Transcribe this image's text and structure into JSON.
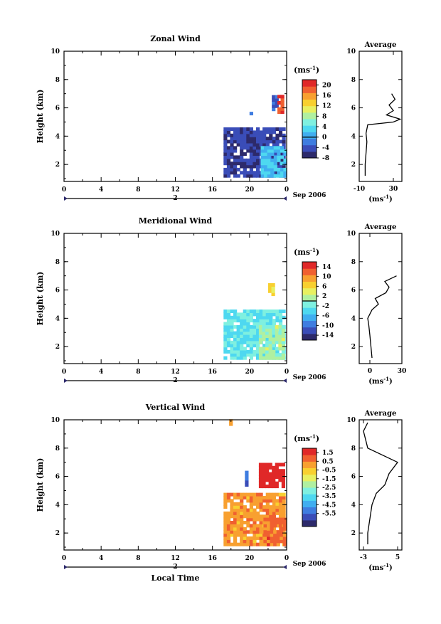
{
  "xlabel_bottom": "Local Time",
  "date_label": "Sep 2006",
  "day_label": "2",
  "ylabel": "Height (km)",
  "units": "(ms",
  "units_sup": "-1",
  "x_ticks": [
    "0",
    "4",
    "8",
    "12",
    "16",
    "20",
    "0"
  ],
  "y_ticks": [
    "2",
    "4",
    "6",
    "8",
    "10"
  ],
  "avg_title": "Average",
  "colormap": [
    "#2d2a6b",
    "#3a4db8",
    "#3f7de0",
    "#40aef0",
    "#4ed8f0",
    "#7ff0e0",
    "#b0f0a0",
    "#e8f060",
    "#f8d030",
    "#f8a030",
    "#f06030",
    "#e02828"
  ],
  "chart_data": [
    {
      "type": "heatmap",
      "title": "Zonal Wind",
      "xlim": [
        0,
        24
      ],
      "ylim": [
        0.8,
        10
      ],
      "colorbar": {
        "min": -8,
        "max": 22,
        "ticks": [
          "20",
          "16",
          "12",
          "8",
          "4",
          "0",
          "-4",
          "-8"
        ],
        "tick_values": [
          20,
          16,
          12,
          8,
          4,
          0,
          -4,
          -8
        ],
        "zero_line": 0
      },
      "regions": [
        {
          "x0": 17.2,
          "x1": 23.8,
          "y0": 1.1,
          "y1": 4.6,
          "value": -5
        },
        {
          "x0": 21.2,
          "x1": 23.8,
          "y0": 1.1,
          "y1": 3.2,
          "value": 2
        },
        {
          "x0": 22.4,
          "x1": 23.0,
          "y0": 5.8,
          "y1": 6.8,
          "value": -3
        },
        {
          "x0": 23.0,
          "x1": 23.6,
          "y0": 5.6,
          "y1": 6.8,
          "value": 20
        },
        {
          "x0": 20.0,
          "x1": 20.2,
          "y0": 5.5,
          "y1": 5.9,
          "value": -2
        }
      ],
      "average": {
        "xlim": [
          -10,
          40
        ],
        "x_ticks": [
          "-10",
          "30"
        ],
        "x_tick_values": [
          -10,
          30
        ],
        "y_ticks": [
          "2",
          "4",
          "6",
          "8",
          "10"
        ],
        "y": [
          1.2,
          2.0,
          2.8,
          3.6,
          4.2,
          4.8,
          5.0,
          5.2,
          5.5,
          5.8,
          6.2,
          6.6,
          7.0
        ],
        "x": [
          -3,
          -3,
          -2,
          -1,
          -2,
          0,
          30,
          38,
          22,
          30,
          25,
          32,
          28
        ]
      }
    },
    {
      "type": "heatmap",
      "title": "Meridional Wind",
      "xlim": [
        0,
        24
      ],
      "ylim": [
        0.8,
        10
      ],
      "colorbar": {
        "min": -16,
        "max": 16,
        "ticks": [
          "14",
          "10",
          "6",
          "2",
          "-2",
          "-6",
          "-10",
          "-14"
        ],
        "tick_values": [
          14,
          10,
          6,
          2,
          -2,
          -6,
          -10,
          -14
        ],
        "zero_line": 0
      },
      "regions": [
        {
          "x0": 17.2,
          "x1": 23.8,
          "y0": 1.1,
          "y1": 4.6,
          "value": -3
        },
        {
          "x0": 21.0,
          "x1": 23.8,
          "y0": 1.1,
          "y1": 3.5,
          "value": 1
        },
        {
          "x0": 22.0,
          "x1": 22.5,
          "y0": 5.6,
          "y1": 6.3,
          "value": 6
        }
      ],
      "average": {
        "xlim": [
          -10,
          30
        ],
        "x_ticks": [
          "0",
          "30"
        ],
        "x_tick_values": [
          0,
          30
        ],
        "y_ticks": [
          "2",
          "4",
          "6",
          "8",
          "10"
        ],
        "y": [
          1.2,
          2.0,
          2.8,
          3.5,
          4.0,
          4.6,
          5.0,
          5.4,
          5.8,
          6.2,
          6.6,
          7.0
        ],
        "x": [
          2,
          1,
          0,
          -1,
          -2,
          2,
          8,
          5,
          15,
          18,
          14,
          25
        ]
      }
    },
    {
      "type": "heatmap",
      "title": "Vertical Wind",
      "xlim": [
        0,
        24
      ],
      "ylim": [
        0.8,
        10
      ],
      "colorbar": {
        "min": -7,
        "max": 2,
        "ticks": [
          "1.5",
          "0.5",
          "-0.5",
          "-1.5",
          "-2.5",
          "-3.5",
          "-4.5",
          "-5.5"
        ],
        "tick_values": [
          1.5,
          0.5,
          -0.5,
          -1.5,
          -2.5,
          -3.5,
          -4.5,
          -5.5
        ],
        "zero_line": null
      },
      "regions": [
        {
          "x0": 17.2,
          "x1": 23.8,
          "y0": 1.1,
          "y1": 4.8,
          "value": 0.2
        },
        {
          "x0": 21.5,
          "x1": 23.8,
          "y0": 1.1,
          "y1": 3.0,
          "value": 0.8
        },
        {
          "x0": 21.0,
          "x1": 23.6,
          "y0": 5.2,
          "y1": 6.9,
          "value": 1.8
        },
        {
          "x0": 19.5,
          "x1": 19.8,
          "y0": 5.3,
          "y1": 6.3,
          "value": -5.5
        },
        {
          "x0": 17.8,
          "x1": 18.0,
          "y0": 9.6,
          "y1": 10.0,
          "value": 0.3
        }
      ],
      "average": {
        "xlim": [
          -4,
          6
        ],
        "x_ticks": [
          "-3",
          "5"
        ],
        "x_tick_values": [
          -3,
          5
        ],
        "y_ticks": [
          "2",
          "4",
          "6",
          "8",
          "10"
        ],
        "y": [
          1.2,
          2.0,
          3.0,
          4.0,
          4.8,
          5.4,
          6.2,
          7.0,
          8.0,
          8.6,
          9.2,
          9.8
        ],
        "x": [
          -2,
          -2,
          -1.5,
          -1,
          0,
          2,
          3,
          5,
          -2,
          -2.5,
          -3,
          -2
        ]
      }
    }
  ]
}
